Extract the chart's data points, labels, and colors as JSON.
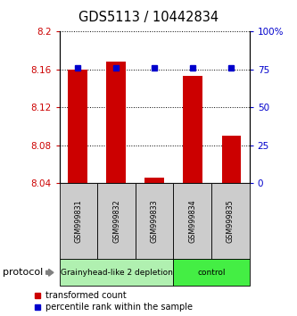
{
  "title": "GDS5113 / 10442834",
  "samples": [
    "GSM999831",
    "GSM999832",
    "GSM999833",
    "GSM999834",
    "GSM999835"
  ],
  "transformed_count": [
    8.16,
    8.168,
    8.046,
    8.153,
    8.09
  ],
  "percentile_rank": [
    76,
    76,
    76,
    76,
    76
  ],
  "ylim_left": [
    8.04,
    8.2
  ],
  "ylim_right": [
    0,
    100
  ],
  "yticks_left": [
    8.04,
    8.08,
    8.12,
    8.16,
    8.2
  ],
  "yticks_right": [
    0,
    25,
    50,
    75,
    100
  ],
  "ytick_labels_left": [
    "8.04",
    "8.08",
    "8.12",
    "8.16",
    "8.2"
  ],
  "ytick_labels_right": [
    "0",
    "25",
    "50",
    "75",
    "100%"
  ],
  "bar_color": "#cc0000",
  "dot_color": "#0000cc",
  "bar_bottom": 8.04,
  "groups": [
    {
      "label": "Grainyhead-like 2 depletion",
      "samples": [
        0,
        1,
        2
      ],
      "color": "#b0f0b0"
    },
    {
      "label": "control",
      "samples": [
        3,
        4
      ],
      "color": "#44ee44"
    }
  ],
  "protocol_label": "protocol",
  "legend_bar_label": "transformed count",
  "legend_dot_label": "percentile rank within the sample",
  "bar_width": 0.5
}
